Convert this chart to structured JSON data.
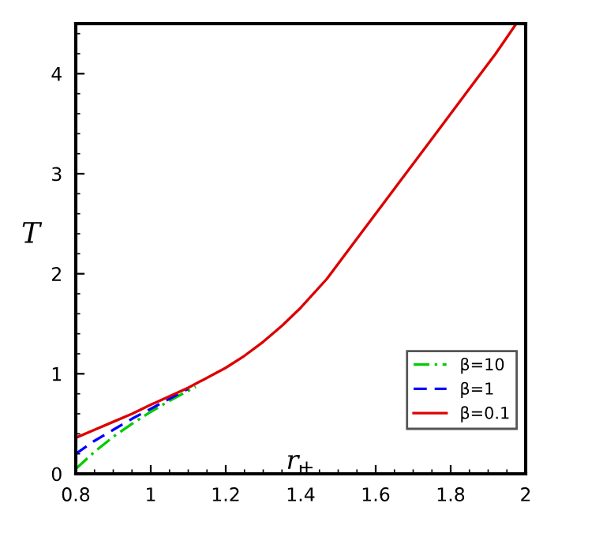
{
  "chart_data": {
    "type": "line",
    "xlabel": "r$_{+}$",
    "ylabel": "T",
    "xlim": [
      0.8,
      2
    ],
    "xticks": [
      0.8,
      1,
      1.2,
      1.4,
      1.6,
      1.8,
      2
    ],
    "ylim": [
      0,
      4.5
    ],
    "yticks": [
      0,
      1,
      2,
      3,
      4
    ],
    "grid": false,
    "legend": "bottom right",
    "series": [
      {
        "name": "β=10",
        "color": "#00cc00",
        "line_style": "dashdot",
        "x": [
          0.8,
          0.85,
          0.9,
          0.95,
          1.0,
          1.05,
          1.1,
          1.12
        ],
        "values": [
          0.05,
          0.22,
          0.37,
          0.5,
          0.62,
          0.73,
          0.83,
          0.87
        ]
      },
      {
        "name": "β=1",
        "color": "#0000ff",
        "line_style": "dashed",
        "x": [
          0.8,
          0.85,
          0.9,
          0.95,
          1.0,
          1.05,
          1.1
        ],
        "values": [
          0.2,
          0.33,
          0.44,
          0.55,
          0.65,
          0.75,
          0.85
        ]
      },
      {
        "name": "β=0.1",
        "color": "#dd0000",
        "line_style": "solid",
        "x": [
          0.8,
          0.85,
          0.9,
          0.95,
          1.0,
          1.1,
          1.2,
          1.25,
          1.3,
          1.35,
          1.4,
          1.47,
          1.52,
          1.58,
          1.65,
          1.72,
          1.78,
          1.85,
          1.92,
          1.975
        ],
        "values": [
          0.36,
          0.44,
          0.52,
          0.6,
          0.69,
          0.86,
          1.06,
          1.18,
          1.32,
          1.48,
          1.66,
          1.95,
          2.2,
          2.5,
          2.85,
          3.2,
          3.5,
          3.85,
          4.2,
          4.5
        ]
      }
    ]
  }
}
